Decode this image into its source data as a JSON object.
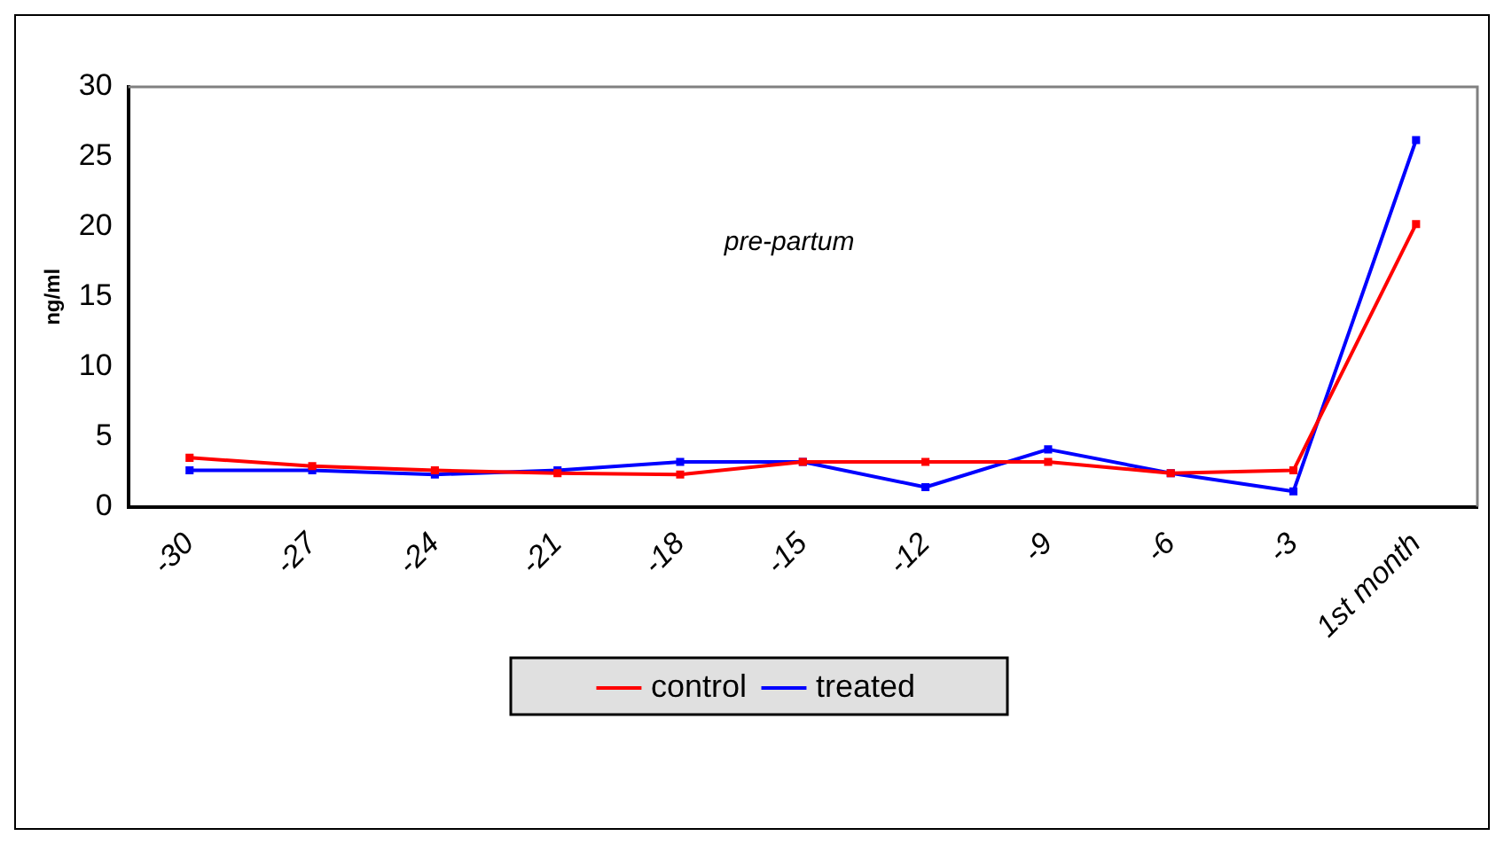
{
  "chart_data": {
    "type": "line",
    "ylabel": "ng/ml",
    "annotations": [
      "pre-partum"
    ],
    "categories": [
      "-30",
      "-27",
      "-24",
      "-21",
      "-18",
      "-15",
      "-12",
      "-9",
      "-6",
      "-3",
      "1st month"
    ],
    "series": [
      {
        "name": "control",
        "color": "#ff0000",
        "values": [
          3.5,
          2.9,
          2.6,
          2.4,
          2.3,
          3.2,
          3.2,
          3.2,
          2.4,
          2.6,
          20.2
        ]
      },
      {
        "name": "treated",
        "color": "#0000ff",
        "values": [
          2.6,
          2.6,
          2.3,
          2.6,
          3.2,
          3.2,
          1.4,
          4.1,
          2.4,
          1.1,
          26.2
        ]
      }
    ],
    "ylim": [
      0,
      30
    ],
    "yticks": [
      0,
      5,
      10,
      15,
      20,
      25,
      30
    ],
    "grid": false,
    "legend": "bottom",
    "marker": "square",
    "line_style": "solid"
  }
}
